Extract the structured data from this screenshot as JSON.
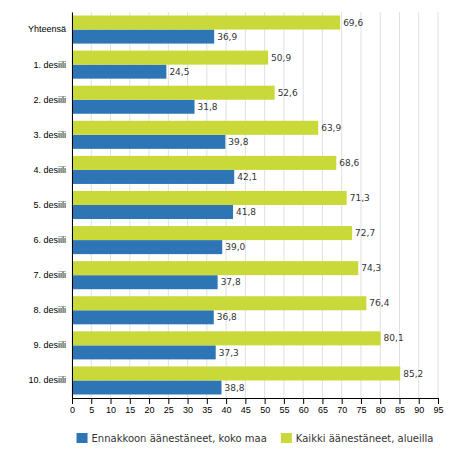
{
  "chart_data": {
    "type": "bar",
    "orientation": "horizontal",
    "categories": [
      "Yhteensä",
      "1. desiili",
      "2. desiili",
      "3. desiili",
      "4. desiili",
      "5. desiili",
      "6. desiili",
      "7. desiili",
      "8. desiili",
      "9. desiili",
      "10. desiili"
    ],
    "series": [
      {
        "name": "Ennakkoon äänestäneet, koko maa",
        "color": "#2E75B6",
        "values": [
          36.9,
          24.5,
          31.8,
          39.8,
          42.1,
          41.8,
          39.0,
          37.8,
          36.8,
          37.3,
          38.8
        ],
        "value_labels": [
          "36,9",
          "24,5",
          "31,8",
          "39,8",
          "42,1",
          "41,8",
          "39,0",
          "37,8",
          "36,8",
          "37,3",
          "38,8"
        ]
      },
      {
        "name": "Kaikki äänestäneet, alueilla",
        "color": "#C9D93A",
        "values": [
          69.6,
          50.9,
          52.6,
          63.9,
          68.6,
          71.3,
          72.7,
          74.3,
          76.4,
          80.1,
          85.2
        ],
        "value_labels": [
          "69,6",
          "50,9",
          "52,6",
          "63,9",
          "68,6",
          "71,3",
          "72,7",
          "74,3",
          "76,4",
          "80,1",
          "85,2"
        ]
      }
    ],
    "xlim": [
      0,
      95
    ],
    "xticks": [
      0,
      5,
      10,
      15,
      20,
      25,
      30,
      35,
      40,
      45,
      50,
      55,
      60,
      65,
      70,
      75,
      80,
      85,
      90,
      95
    ],
    "grid": true,
    "data_labels": true,
    "legend": "bottom"
  }
}
